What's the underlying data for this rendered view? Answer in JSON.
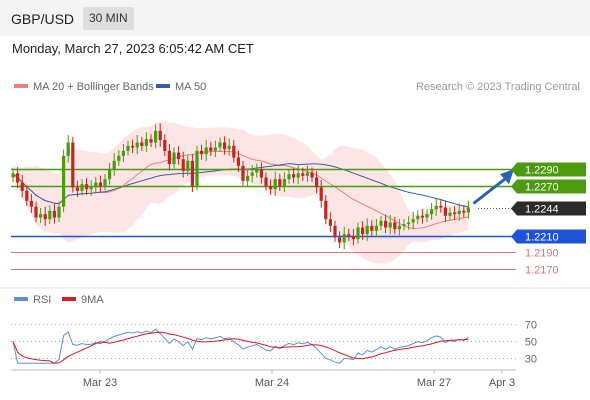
{
  "header": {
    "symbol": "GBP/USD",
    "timeframe": "30 MIN",
    "datetime": "Monday, March 27, 2023 6:05:42 AM CET"
  },
  "colors": {
    "resistance": "#4c9a0f",
    "support": "#1f52d6",
    "current": "#2b2b2b",
    "minor_support": "#e57373",
    "candle_up": "#4c9a0f",
    "candle_down": "#c0271f",
    "ma20": "#ef7f7f",
    "band_fill": "#fde0e0",
    "ma50": "#3a5ca8",
    "rsi": "#5b8fd8",
    "rsi_ma": "#d81b1b",
    "arrow": "#2a63b5"
  },
  "chart_data": [
    {
      "type": "candlestick",
      "legend": [
        {
          "label": "MA 20 + Bollinger Bands",
          "color": "#ef7f7f"
        },
        {
          "label": "MA 50",
          "color": "#3a5ca8"
        }
      ],
      "watermark": "Research © 2023 Trading Central",
      "ylim": [
        1.2157,
        1.2373
      ],
      "levels": [
        {
          "value": 1.229,
          "label": "1.2290",
          "kind": "resistance"
        },
        {
          "value": 1.227,
          "label": "1.2270",
          "kind": "resistance"
        },
        {
          "value": 1.2244,
          "label": "1.2244",
          "kind": "current"
        },
        {
          "value": 1.221,
          "label": "1.2210",
          "kind": "support"
        },
        {
          "value": 1.219,
          "label": "1.2190",
          "kind": "minor"
        },
        {
          "value": 1.217,
          "label": "1.2170",
          "kind": "minor"
        }
      ],
      "x_ticks": [
        "Mar 23",
        "Mar 24",
        "Mar 27",
        "Apr 3"
      ],
      "close": [
        1.2285,
        1.2274,
        1.2264,
        1.2252,
        1.2245,
        1.2232,
        1.2236,
        1.223,
        1.224,
        1.2232,
        1.2245,
        1.2306,
        1.2322,
        1.2268,
        1.2264,
        1.2272,
        1.2266,
        1.2268,
        1.2274,
        1.227,
        1.2278,
        1.229,
        1.23,
        1.2306,
        1.2312,
        1.2318,
        1.2316,
        1.2322,
        1.2318,
        1.2326,
        1.2322,
        1.2336,
        1.2325,
        1.2312,
        1.2296,
        1.231,
        1.2302,
        1.2288,
        1.23,
        1.227,
        1.2312,
        1.2308,
        1.2316,
        1.2312,
        1.2316,
        1.2322,
        1.2314,
        1.2318,
        1.2304,
        1.2294,
        1.2276,
        1.2282,
        1.2286,
        1.229,
        1.228,
        1.227,
        1.2266,
        1.2278,
        1.227,
        1.2278,
        1.2284,
        1.228,
        1.2285,
        1.2282,
        1.2286,
        1.228,
        1.2268,
        1.2252,
        1.223,
        1.2222,
        1.2208,
        1.2202,
        1.2212,
        1.221,
        1.2206,
        1.222,
        1.2212,
        1.2222,
        1.2216,
        1.2222,
        1.2228,
        1.222,
        1.2226,
        1.2218,
        1.2222,
        1.2224,
        1.2226,
        1.223,
        1.2234,
        1.2232,
        1.2236,
        1.2242,
        1.2246,
        1.2244,
        1.2234,
        1.2238,
        1.2236,
        1.224,
        1.2238,
        1.2244
      ],
      "open_first": 1.228
    },
    {
      "type": "line",
      "legend": [
        {
          "label": "RSI",
          "color": "#5b8fd8"
        },
        {
          "label": "9MA",
          "color": "#d81b1b"
        }
      ],
      "ylim": [
        22,
        81
      ],
      "levels": [
        70,
        50,
        30
      ],
      "level_labels": [
        "70",
        "50",
        "30"
      ]
    }
  ]
}
